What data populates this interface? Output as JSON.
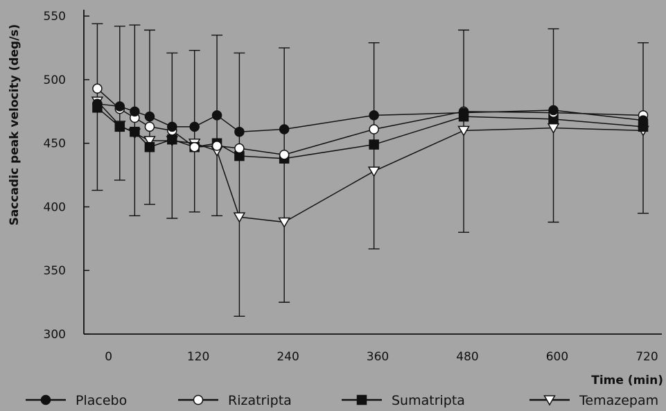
{
  "chart_data": {
    "type": "line",
    "xlabel": "Time (min)",
    "ylabel": "Saccadic peak velocity (deg/s)",
    "xlim": [
      -33,
      740
    ],
    "ylim": [
      300,
      555
    ],
    "xticks": [
      0,
      120,
      240,
      360,
      480,
      600,
      720
    ],
    "yticks": [
      300,
      350,
      400,
      450,
      500,
      550
    ],
    "grid": false,
    "legend_position": "bottom",
    "error_bars": {
      "x": [
        -15,
        15,
        35,
        55,
        85,
        115,
        145,
        175,
        235,
        355,
        475,
        595,
        715
      ],
      "upper": [
        544,
        542,
        543,
        539,
        521,
        523,
        535,
        521,
        525,
        529,
        539,
        540,
        529
      ],
      "lower": [
        413,
        421,
        393,
        402,
        391,
        396,
        393,
        314,
        325,
        367,
        380,
        388,
        395
      ]
    },
    "series": [
      {
        "name": "Placebo",
        "marker": "filled-circle",
        "x": [
          -15,
          15,
          35,
          55,
          85,
          115,
          145,
          175,
          235,
          355,
          475,
          595,
          715
        ],
        "values": [
          481,
          479,
          475,
          471,
          463,
          463,
          472,
          459,
          461,
          472,
          474,
          476,
          468
        ]
      },
      {
        "name": "Rizatripta",
        "marker": "open-circle",
        "x": [
          -15,
          15,
          35,
          55,
          85,
          115,
          145,
          175,
          235,
          355,
          475,
          595,
          715
        ],
        "values": [
          493,
          477,
          470,
          463,
          460,
          447,
          448,
          446,
          441,
          461,
          475,
          474,
          472
        ]
      },
      {
        "name": "Sumatripta",
        "marker": "filled-square",
        "x": [
          -15,
          15,
          35,
          55,
          85,
          115,
          145,
          175,
          235,
          355,
          475,
          595,
          715
        ],
        "values": [
          478,
          463,
          459,
          447,
          453,
          447,
          450,
          440,
          438,
          449,
          471,
          469,
          463
        ]
      },
      {
        "name": "Temazepam",
        "marker": "open-triangle-down",
        "x": [
          -15,
          15,
          35,
          55,
          85,
          115,
          145,
          175,
          235,
          355,
          475,
          595,
          715
        ],
        "values": [
          483,
          464,
          458,
          452,
          452,
          450,
          444,
          392,
          388,
          428,
          460,
          462,
          460
        ]
      }
    ]
  }
}
